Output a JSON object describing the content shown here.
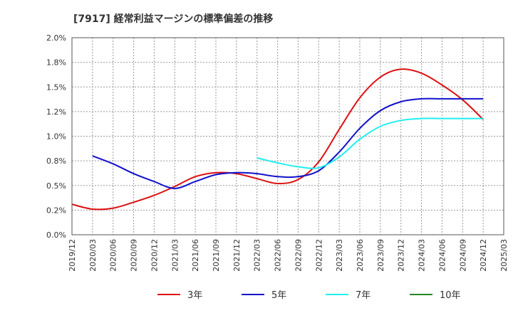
{
  "chart_data": {
    "type": "line",
    "title": "[7917]  経常利益マージンの標準偏差の推移",
    "xlabel": "",
    "ylabel": "",
    "ylim": [
      0,
      2.0
    ],
    "y_ticks": [
      "0.0%",
      "0.2%",
      "0.5%",
      "0.8%",
      "1.0%",
      "1.2%",
      "1.5%",
      "1.8%",
      "2.0%"
    ],
    "x_ticks": [
      "2019/12",
      "2020/03",
      "2020/06",
      "2020/09",
      "2020/12",
      "2021/03",
      "2021/06",
      "2021/09",
      "2021/12",
      "2022/03",
      "2022/06",
      "2022/09",
      "2022/12",
      "2023/03",
      "2023/06",
      "2023/09",
      "2023/12",
      "2024/03",
      "2024/06",
      "2024/09",
      "2024/12",
      "2025/03"
    ],
    "grid": true,
    "legend_position": "bottom",
    "series": [
      {
        "name": "3年",
        "color": "#dd1111",
        "x": [
          "2019/12",
          "2020/03",
          "2020/06",
          "2020/09",
          "2020/12",
          "2021/03",
          "2021/06",
          "2021/09",
          "2021/12",
          "2022/03",
          "2022/06",
          "2022/09",
          "2022/12",
          "2023/03",
          "2023/06",
          "2023/09",
          "2023/12",
          "2024/03",
          "2024/06",
          "2024/09",
          "2024/12"
        ],
        "values": [
          0.31,
          0.26,
          0.27,
          0.33,
          0.4,
          0.49,
          0.59,
          0.63,
          0.62,
          0.57,
          0.52,
          0.56,
          0.74,
          1.07,
          1.39,
          1.6,
          1.68,
          1.64,
          1.52,
          1.37,
          1.17
        ]
      },
      {
        "name": "5年",
        "color": "#1111cc",
        "x": [
          "2020/03",
          "2020/06",
          "2020/09",
          "2020/12",
          "2021/03",
          "2021/06",
          "2021/09",
          "2021/12",
          "2022/03",
          "2022/06",
          "2022/09",
          "2022/12",
          "2023/03",
          "2023/06",
          "2023/09",
          "2023/12",
          "2024/03",
          "2024/06",
          "2024/09",
          "2024/12"
        ],
        "values": [
          0.8,
          0.72,
          0.62,
          0.54,
          0.47,
          0.54,
          0.61,
          0.63,
          0.62,
          0.59,
          0.59,
          0.65,
          0.84,
          1.08,
          1.26,
          1.35,
          1.38,
          1.38,
          1.38,
          1.38
        ]
      },
      {
        "name": "7年",
        "color": "#22eeee",
        "x": [
          "2022/03",
          "2022/06",
          "2022/09",
          "2022/12",
          "2023/03",
          "2023/06",
          "2023/09",
          "2023/12",
          "2024/03",
          "2024/06",
          "2024/09",
          "2024/12"
        ],
        "values": [
          0.78,
          0.73,
          0.69,
          0.68,
          0.79,
          0.97,
          1.1,
          1.16,
          1.18,
          1.18,
          1.18,
          1.18
        ]
      },
      {
        "name": "10年",
        "color": "#228822",
        "x": [],
        "values": []
      }
    ]
  }
}
